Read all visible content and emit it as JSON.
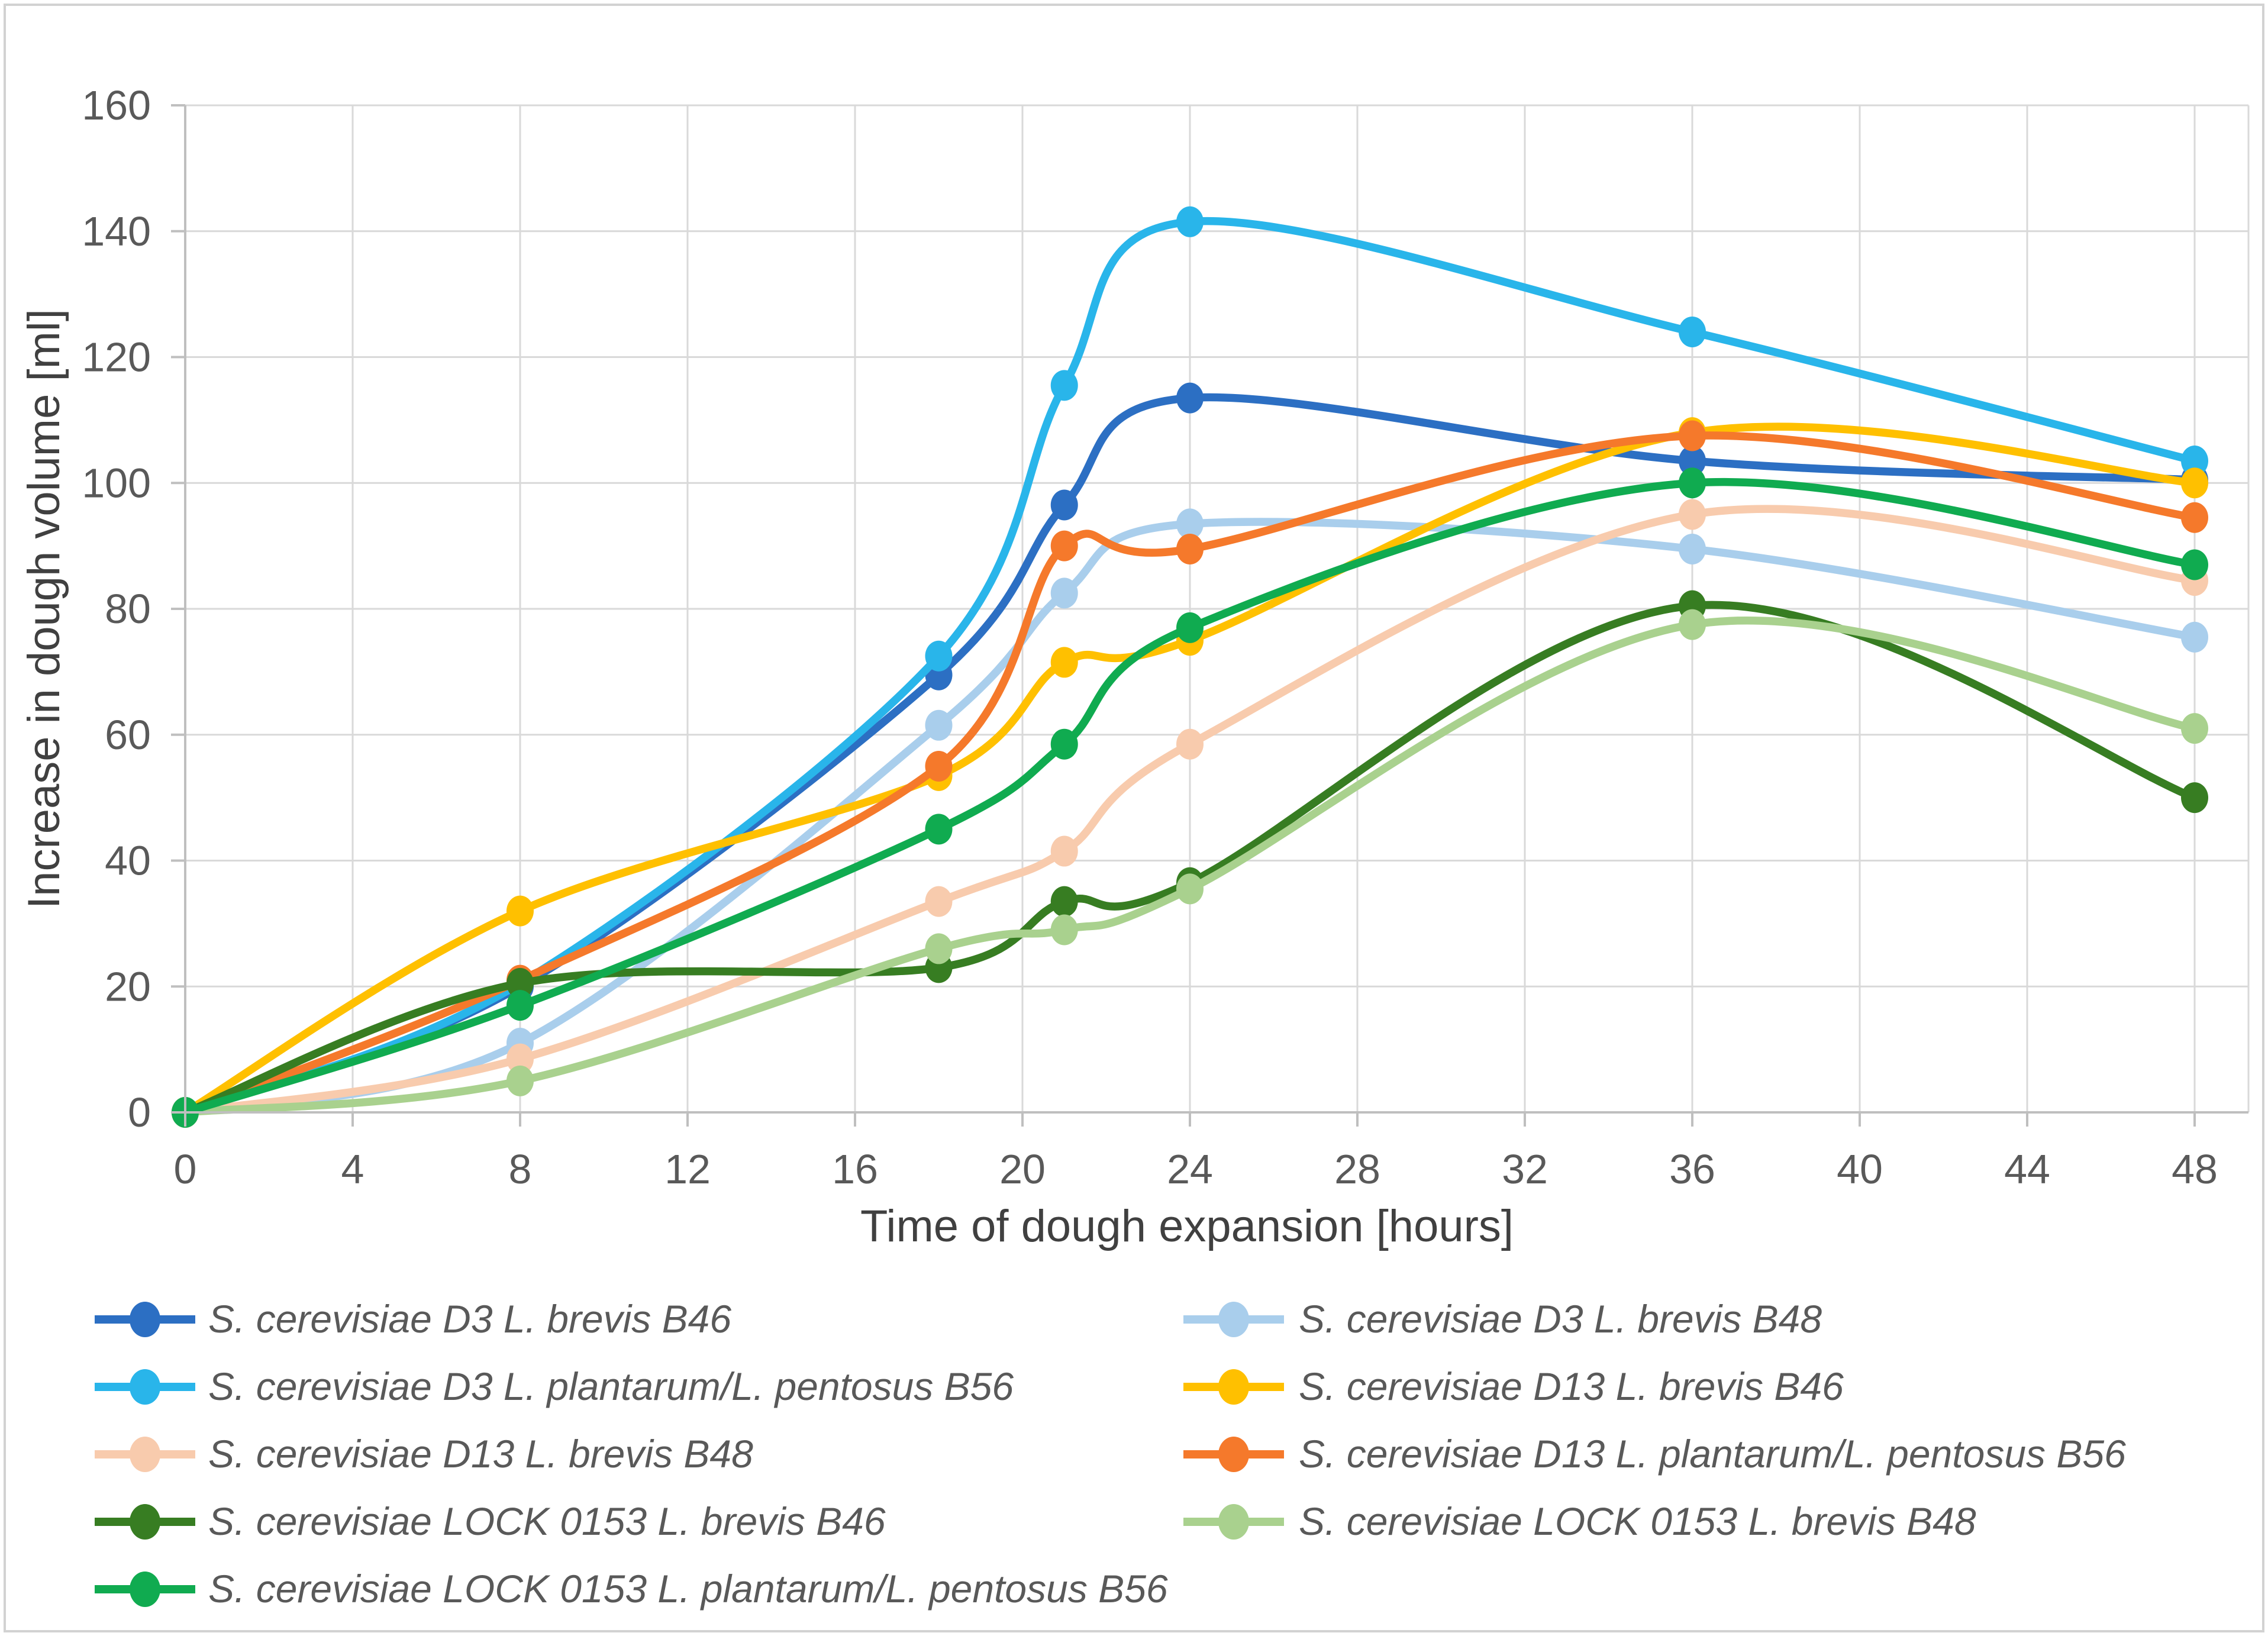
{
  "palette": {
    "background": "#FFFFFF",
    "figure_border": "#D2D2D2",
    "gridline": "#D9D9D9",
    "axis_line": "#BFBFBF",
    "tick_text": "#595959",
    "axis_title_text": "#404040",
    "legend_text": "#595959"
  },
  "chart_data": {
    "type": "line",
    "title": "",
    "xlabel": "Time of dough expansion [hours]",
    "ylabel": "Increase in dough volume [ml]",
    "x": [
      0,
      8,
      18,
      21,
      24,
      36,
      48
    ],
    "xlim": [
      0,
      49.3
    ],
    "ylim": [
      0,
      160
    ],
    "x_ticks": [
      0,
      4,
      8,
      12,
      16,
      20,
      24,
      28,
      32,
      36,
      40,
      44,
      48
    ],
    "y_ticks": [
      0,
      20,
      40,
      60,
      80,
      100,
      120,
      140,
      160
    ],
    "grid": true,
    "line_style": "smooth",
    "marker": "circle",
    "legend_position": "bottom",
    "legend_columns": 2,
    "series": [
      {
        "name": "S. cerevisiae D3 L. brevis B46",
        "color": "#2C6FC3",
        "values": [
          0,
          20,
          69.5,
          96.5,
          113.5,
          103.5,
          100.5
        ]
      },
      {
        "name": "S. cerevisiae D3 L. brevis B48",
        "color": "#A9CEEC",
        "values": [
          0,
          11,
          61.5,
          82.5,
          93.5,
          89.5,
          75.5
        ]
      },
      {
        "name": "S. cerevisiae D3 L. plantarum/L. pentosus B56",
        "color": "#29B5EA",
        "values": [
          0,
          20.5,
          72.5,
          115.5,
          141.5,
          124,
          103.5
        ]
      },
      {
        "name": "S. cerevisiae D13 L. brevis B46",
        "color": "#FFC000",
        "values": [
          0,
          32,
          53.5,
          71.5,
          75,
          108,
          100
        ]
      },
      {
        "name": "S. cerevisiae D13 L. brevis B48",
        "color": "#F8CBAD",
        "values": [
          0,
          8.5,
          33.5,
          41.5,
          58.5,
          95,
          84.5
        ]
      },
      {
        "name": "S. cerevisiae D13 L. plantarum/L. pentosus B56",
        "color": "#F5792B",
        "values": [
          0,
          21,
          55,
          90,
          89.5,
          107.5,
          94.5
        ]
      },
      {
        "name": "S. cerevisiae LOCK 0153 L. brevis B46",
        "color": "#377D22",
        "values": [
          0,
          20.5,
          23,
          33.5,
          36.5,
          80.5,
          50
        ]
      },
      {
        "name": "S. cerevisiae LOCK 0153 L. brevis B48",
        "color": "#A9D18E",
        "values": [
          0,
          5,
          26,
          29,
          35.5,
          77.5,
          61
        ]
      },
      {
        "name": "S. cerevisiae LOCK 0153 L. plantarum/L. pentosus B56",
        "color": "#10AB50",
        "values": [
          0,
          17,
          45,
          58.5,
          77,
          100,
          87
        ]
      }
    ]
  }
}
